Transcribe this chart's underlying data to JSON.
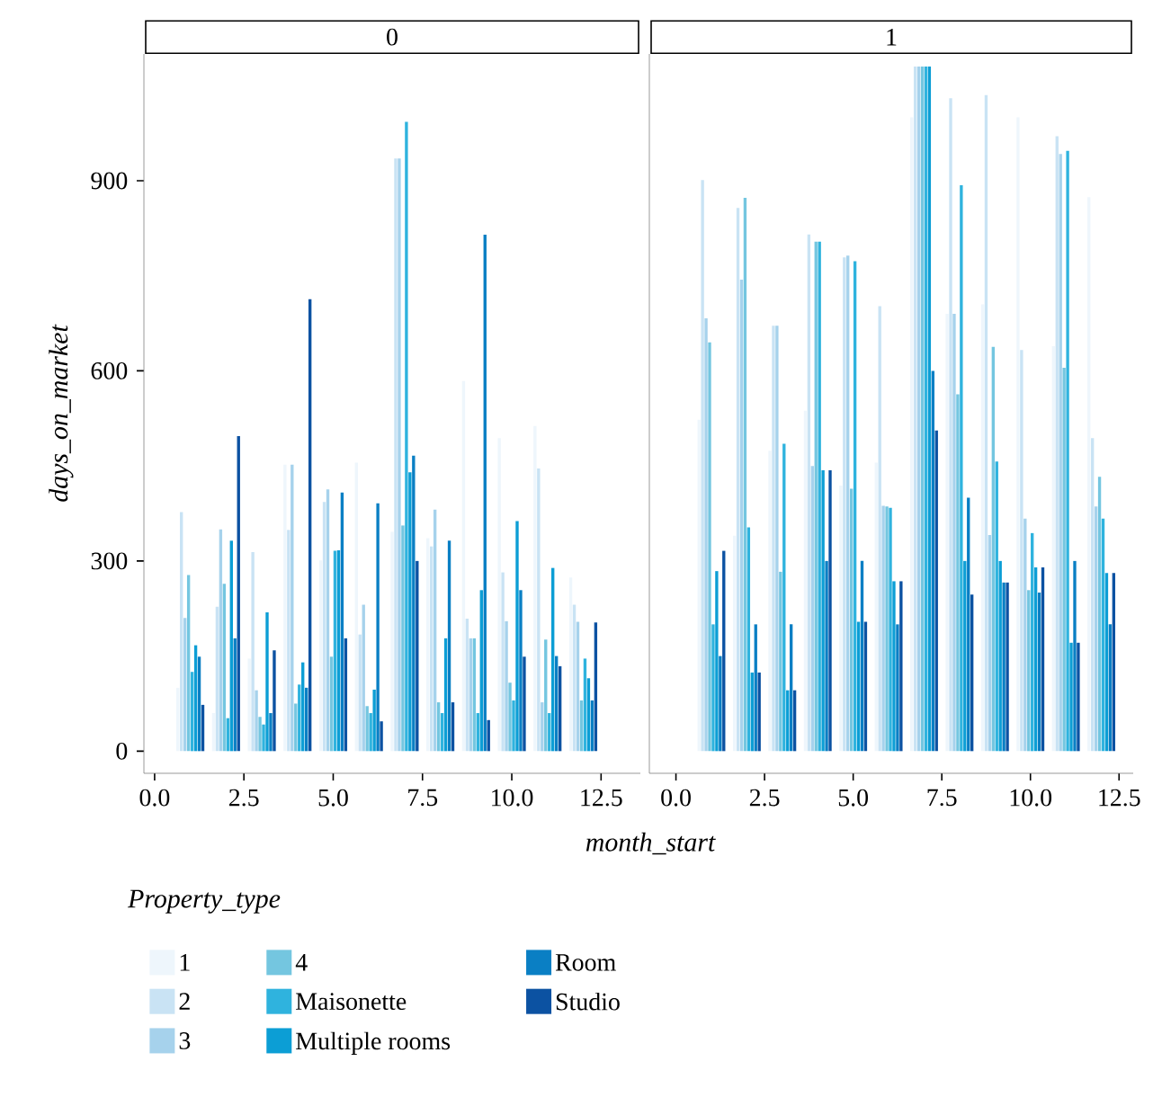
{
  "chart_data": [
    {
      "type": "bar",
      "title": "0",
      "xlabel": "month_start",
      "ylabel": "days_on_market",
      "legend_title": "Property_type",
      "legend": "bottom",
      "x": [
        1,
        2,
        3,
        4,
        5,
        6,
        7,
        8,
        9,
        10,
        11,
        12
      ],
      "xlim": [
        -0.3,
        13.6
      ],
      "ylim": [
        -35,
        1100
      ],
      "xticks": [
        {
          "value": 0,
          "label": "0.0"
        },
        {
          "value": 2.5,
          "label": "2.5"
        },
        {
          "value": 5,
          "label": "5.0"
        },
        {
          "value": 7.5,
          "label": "7.5"
        },
        {
          "value": 10,
          "label": "10.0"
        },
        {
          "value": 12.5,
          "label": "12.5"
        }
      ],
      "yticks": [
        0,
        300,
        600,
        900
      ],
      "series": [
        {
          "name": "1",
          "color": "#eef6fc",
          "values": [
            100,
            60,
            146,
            452,
            301,
            455,
            346,
            336,
            584,
            494,
            513,
            274
          ]
        },
        {
          "name": "2",
          "color": "#c9e3f4",
          "values": [
            377,
            228,
            314,
            349,
            393,
            184,
            935,
            323,
            209,
            282,
            446,
            231
          ]
        },
        {
          "name": "3",
          "color": "#a6d2ec",
          "values": [
            210,
            350,
            96,
            452,
            413,
            231,
            935,
            381,
            178,
            205,
            77,
            204
          ]
        },
        {
          "name": "4",
          "color": "#74c6e0",
          "values": [
            278,
            264,
            54,
            75,
            149,
            71,
            356,
            77,
            178,
            108,
            176,
            80
          ]
        },
        {
          "name": "Maisonette",
          "color": "#2fb3de",
          "values": [
            125,
            52,
            42,
            105,
            316,
            60,
            993,
            60,
            60,
            80,
            60,
            146
          ]
        },
        {
          "name": "Multiple rooms",
          "color": "#0c9ed5",
          "values": [
            167,
            332,
            219,
            140,
            317,
            97,
            440,
            178,
            254,
            363,
            289,
            115
          ]
        },
        {
          "name": "Room",
          "color": "#0a7fc4",
          "values": [
            149,
            178,
            60,
            100,
            408,
            391,
            466,
            332,
            815,
            254,
            150,
            80
          ]
        },
        {
          "name": "Studio",
          "color": "#0c52a2",
          "values": [
            73,
            497,
            159,
            713,
            178,
            47,
            300,
            77,
            49,
            149,
            134,
            203
          ]
        }
      ]
    },
    {
      "type": "bar",
      "title": "1",
      "tick_labels": "x",
      "x": [
        1,
        2,
        3,
        4,
        5,
        6,
        7,
        8,
        9,
        10,
        11,
        12
      ],
      "xlim": [
        -0.75,
        12.9
      ],
      "ylim": [
        -35,
        1100
      ],
      "xticks": [
        {
          "value": 0,
          "label": "0.0"
        },
        {
          "value": 2.5,
          "label": "2.5"
        },
        {
          "value": 5,
          "label": "5.0"
        },
        {
          "value": 7.5,
          "label": "7.5"
        },
        {
          "value": 10,
          "label": "10.0"
        },
        {
          "value": 12.5,
          "label": "12.5"
        }
      ],
      "yticks": [
        0,
        300,
        600,
        900
      ],
      "series": [
        {
          "color": "#eef6fc",
          "values": [
            523,
            340,
            474,
            537,
            419,
            455,
            1000,
            690,
            705,
            1000,
            639,
            874
          ]
        },
        {
          "color": "#c9e3f4",
          "values": [
            901,
            857,
            671,
            815,
            779,
            702,
            1080,
            1030,
            1035,
            633,
            970,
            494
          ]
        },
        {
          "color": "#a6d2ec",
          "values": [
            683,
            744,
            671,
            450,
            782,
            387,
            1080,
            690,
            341,
            367,
            942,
            386
          ]
        },
        {
          "color": "#74c6e0",
          "values": [
            645,
            873,
            283,
            804,
            414,
            386,
            1080,
            563,
            638,
            254,
            605,
            433
          ]
        },
        {
          "color": "#2fb3de",
          "values": [
            200,
            353,
            485,
            804,
            773,
            384,
            1080,
            893,
            457,
            344,
            947,
            367
          ]
        },
        {
          "color": "#0c9ed5",
          "values": [
            284,
            124,
            96,
            443,
            204,
            268,
            1080,
            300,
            300,
            290,
            171,
            281
          ]
        },
        {
          "color": "#0a7fc4",
          "values": [
            150,
            200,
            200,
            300,
            300,
            200,
            600,
            400,
            266,
            250,
            300,
            200
          ]
        },
        {
          "color": "#0c52a2",
          "values": [
            316,
            124,
            96,
            443,
            204,
            268,
            506,
            247,
            266,
            290,
            171,
            281
          ]
        }
      ]
    }
  ]
}
